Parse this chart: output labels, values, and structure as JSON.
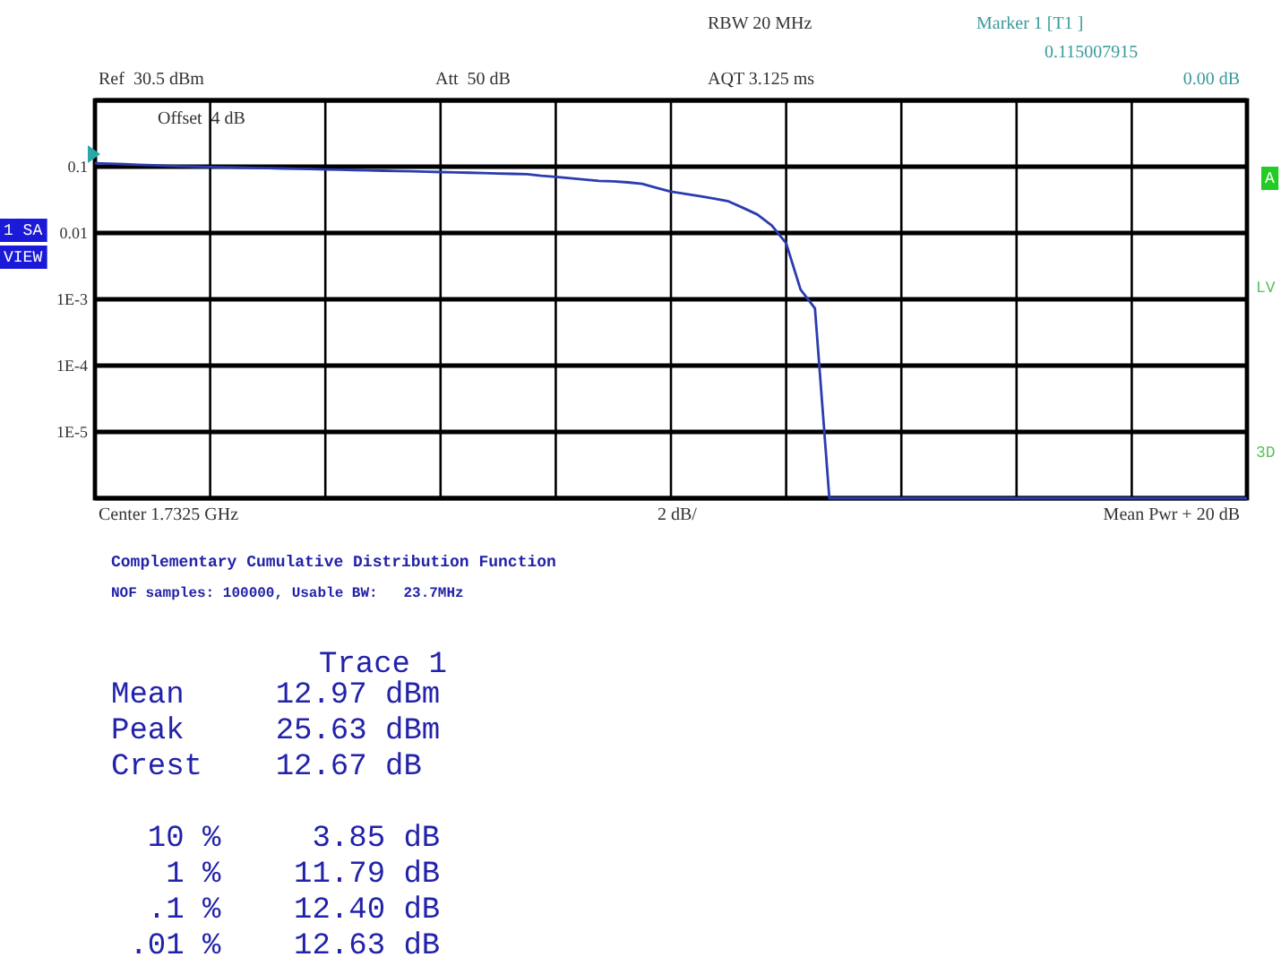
{
  "chart_data": {
    "type": "line",
    "title": "Complementary Cumulative Distribution Function",
    "subtitle": "NOF samples: 100000, Usable BW:   23.7MHz",
    "categories": [
      null,
      null,
      null,
      null,
      null,
      null,
      null,
      null,
      null,
      null,
      null,
      null,
      null,
      null,
      null,
      null,
      null,
      null,
      null,
      null,
      null,
      null,
      null,
      null,
      null,
      null,
      null,
      null,
      null,
      null,
      null,
      null,
      null,
      null,
      null,
      null,
      null,
      null,
      null,
      null,
      null,
      null,
      null,
      null,
      null,
      null,
      null,
      null,
      null,
      null,
      null,
      null,
      null,
      null,
      null,
      null,
      null,
      null,
      null,
      null,
      null,
      null,
      null,
      null,
      null,
      null,
      null,
      null,
      null,
      null,
      null,
      null,
      null,
      null,
      null,
      null,
      null,
      null,
      null,
      null,
      null
    ],
    "series": [
      {
        "color": "#2b3cb0",
        "values": [
          0.113,
          0.111,
          0.109,
          0.107,
          0.105,
          0.103,
          0.101,
          0.1,
          0.099,
          0.098,
          0.097,
          0.096,
          0.095,
          0.094,
          0.093,
          0.092,
          0.091,
          0.09,
          0.089,
          0.088,
          0.087,
          0.086,
          0.085,
          0.084,
          0.083,
          0.082,
          0.081,
          0.08,
          0.079,
          0.078,
          0.077,
          0.073,
          0.07,
          0.067,
          0.064,
          0.061,
          0.06,
          0.058,
          0.055,
          0.048,
          0.042,
          0.039,
          0.036,
          0.033,
          0.03,
          0.024,
          0.019,
          0.013,
          0.007,
          0.0014,
          0.00073,
          1e-06,
          1e-06,
          1e-06,
          1e-06,
          1e-06,
          1e-06,
          1e-06,
          1e-06,
          1e-06,
          1e-06,
          1e-06,
          1e-06,
          1e-06,
          1e-06,
          1e-06,
          1e-06,
          1e-06,
          1e-06,
          1e-06,
          1e-06,
          1e-06,
          1e-06,
          1e-06,
          1e-06,
          1e-06,
          1e-06,
          1e-06,
          1e-06,
          1e-06,
          1e-06
        ]
      }
    ],
    "ylim": [
      1e-06,
      1
    ],
    "yticks": [
      {
        "value": 1,
        "label": null
      },
      {
        "value": 0.1,
        "label": "0.1"
      },
      {
        "value": 0.01,
        "label": "0.01"
      },
      {
        "value": 0.001,
        "label": "1E-3"
      },
      {
        "value": 0.0001,
        "label": "1E-4"
      },
      {
        "value": 1e-05,
        "label": "1E-5"
      },
      {
        "value": 1e-06,
        "label": null
      }
    ],
    "log": "y",
    "grid": true,
    "tick_labels": "y",
    "marker": "none",
    "line_style": "solid",
    "annotations": [
      "RBW 20 MHz",
      "Marker 1 [T1 ]",
      "0.115007915",
      "0.00 dB",
      "Ref  30.5 dBm",
      "Att  50 dB",
      "AQT 3.125 ms",
      "Offset  4 dB",
      "1 SA",
      "VIEW",
      "A",
      "LV",
      "3D",
      "Center 1.7325 GHz",
      "2 dB/",
      "Mean Pwr + 20 dB",
      "Trace 1",
      "Mean     12.97 dBm",
      "Peak     25.63 dBm",
      "Crest    12.67 dB",
      "  10 %     3.85 dB",
      "   1 %    11.79 dB",
      "  .1 %    12.40 dB",
      " .01 %    12.63 dB"
    ]
  }
}
